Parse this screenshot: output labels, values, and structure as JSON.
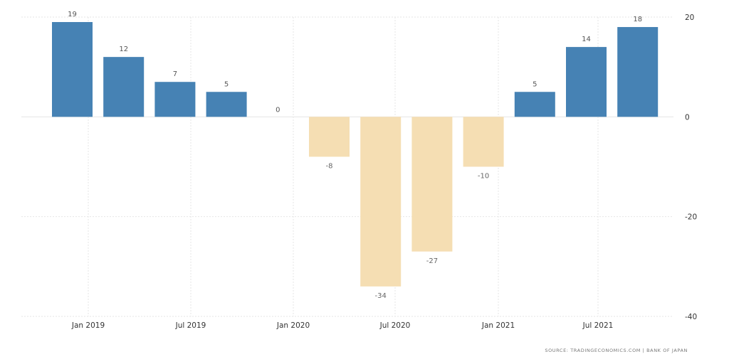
{
  "chart_data": {
    "type": "bar",
    "categories": [
      "Dec 2018",
      "Mar 2019",
      "Jun 2019",
      "Sep 2019",
      "Dec 2019",
      "Mar 2020",
      "Jun 2020",
      "Sep 2020",
      "Dec 2020",
      "Mar 2021",
      "Jun 2021",
      "Sep 2021"
    ],
    "values": [
      19,
      12,
      7,
      5,
      0,
      -8,
      -34,
      -27,
      -10,
      5,
      14,
      18
    ],
    "data_labels": [
      "19",
      "12",
      "7",
      "5",
      "0",
      "-8",
      "-34",
      "-27",
      "-10",
      "5",
      "14",
      "18"
    ],
    "x_tick_labels": [
      "Jan 2019",
      "Jul 2019",
      "Jan 2020",
      "Jul 2020",
      "Jan 2021",
      "Jul 2021"
    ],
    "y_ticks": [
      20,
      0,
      -20,
      -40
    ],
    "ylim": [
      -40,
      20
    ],
    "title": "",
    "xlabel": "",
    "ylabel": "",
    "grid": true,
    "colors": {
      "positive": "#4682b4",
      "negative": "#f5deb3",
      "positive_label": "#555555",
      "negative_label": "#666666",
      "axis_text": "#333333",
      "grid": "#e6e6e6"
    }
  },
  "source": "SOURCE: TRADINGECONOMICS.COM | BANK OF JAPAN"
}
